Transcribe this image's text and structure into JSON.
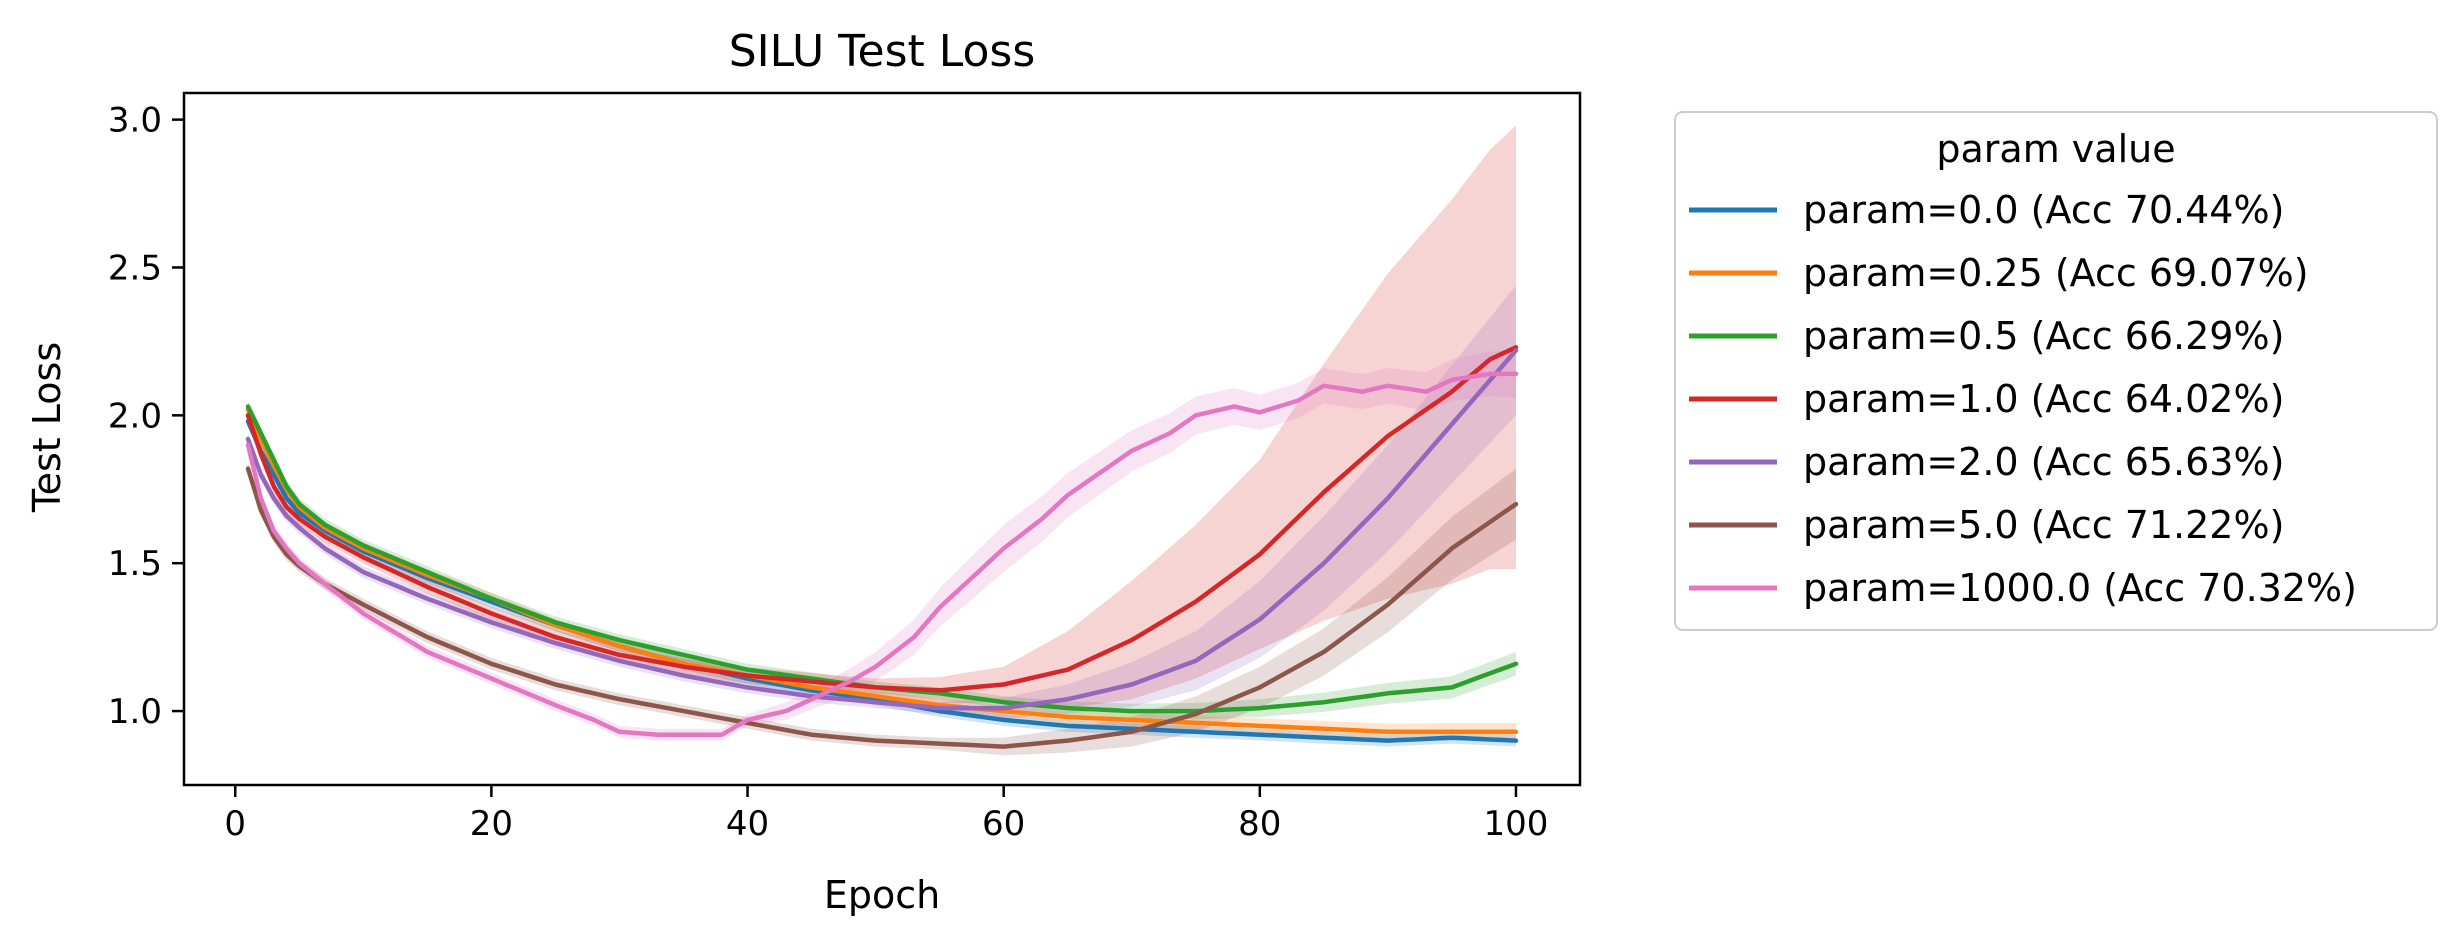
{
  "chart_data": {
    "type": "line",
    "title": "SILU Test Loss",
    "xlabel": "Epoch",
    "ylabel": "Test Loss",
    "xlim": [
      -4,
      105
    ],
    "ylim": [
      0.75,
      3.09
    ],
    "xticks": [
      0,
      20,
      40,
      60,
      80,
      100
    ],
    "yticks": [
      1.0,
      1.5,
      2.0,
      2.5,
      3.0
    ],
    "x_tick_labels": [
      "0",
      "20",
      "40",
      "60",
      "80",
      "100"
    ],
    "y_tick_labels": [
      "1.0",
      "1.5",
      "2.0",
      "2.5",
      "3.0"
    ],
    "grid": false,
    "shaded_bands": true,
    "legend": {
      "title": "param value",
      "placement": "outside-right-top"
    },
    "series": [
      {
        "name": "param=0.0 (Acc 70.44%)",
        "color": "#1f77b4",
        "points": [
          [
            1,
            1.98
          ],
          [
            2,
            1.88
          ],
          [
            3,
            1.8
          ],
          [
            4,
            1.72
          ],
          [
            5,
            1.67
          ],
          [
            7,
            1.61
          ],
          [
            10,
            1.54
          ],
          [
            15,
            1.45
          ],
          [
            20,
            1.37
          ],
          [
            25,
            1.29
          ],
          [
            30,
            1.22
          ],
          [
            35,
            1.16
          ],
          [
            40,
            1.11
          ],
          [
            45,
            1.07
          ],
          [
            50,
            1.04
          ],
          [
            55,
            1.0
          ],
          [
            60,
            0.97
          ],
          [
            65,
            0.95
          ],
          [
            70,
            0.94
          ],
          [
            75,
            0.93
          ],
          [
            80,
            0.92
          ],
          [
            85,
            0.91
          ],
          [
            90,
            0.9
          ],
          [
            95,
            0.91
          ],
          [
            100,
            0.9
          ]
        ],
        "band": [
          [
            1,
            0.02
          ],
          [
            50,
            0.02
          ],
          [
            100,
            0.02
          ]
        ]
      },
      {
        "name": "param=0.25 (Acc 69.07%)",
        "color": "#ff7f0e",
        "points": [
          [
            1,
            2.02
          ],
          [
            2,
            1.92
          ],
          [
            3,
            1.83
          ],
          [
            4,
            1.75
          ],
          [
            5,
            1.69
          ],
          [
            7,
            1.62
          ],
          [
            10,
            1.55
          ],
          [
            15,
            1.46
          ],
          [
            20,
            1.38
          ],
          [
            25,
            1.29
          ],
          [
            30,
            1.22
          ],
          [
            35,
            1.16
          ],
          [
            40,
            1.12
          ],
          [
            45,
            1.08
          ],
          [
            50,
            1.05
          ],
          [
            55,
            1.02
          ],
          [
            60,
            1.0
          ],
          [
            65,
            0.98
          ],
          [
            70,
            0.97
          ],
          [
            75,
            0.96
          ],
          [
            80,
            0.95
          ],
          [
            85,
            0.94
          ],
          [
            90,
            0.93
          ],
          [
            95,
            0.93
          ],
          [
            100,
            0.93
          ]
        ],
        "band": [
          [
            1,
            0.02
          ],
          [
            60,
            0.02
          ],
          [
            100,
            0.03
          ]
        ]
      },
      {
        "name": "param=0.5 (Acc 66.29%)",
        "color": "#2ca02c",
        "points": [
          [
            1,
            2.03
          ],
          [
            2,
            1.94
          ],
          [
            3,
            1.85
          ],
          [
            4,
            1.76
          ],
          [
            5,
            1.7
          ],
          [
            7,
            1.63
          ],
          [
            10,
            1.56
          ],
          [
            15,
            1.47
          ],
          [
            20,
            1.38
          ],
          [
            25,
            1.3
          ],
          [
            30,
            1.24
          ],
          [
            35,
            1.19
          ],
          [
            40,
            1.14
          ],
          [
            45,
            1.11
          ],
          [
            50,
            1.08
          ],
          [
            55,
            1.06
          ],
          [
            60,
            1.03
          ],
          [
            65,
            1.01
          ],
          [
            70,
            1.0
          ],
          [
            75,
            1.0
          ],
          [
            80,
            1.01
          ],
          [
            85,
            1.03
          ],
          [
            90,
            1.06
          ],
          [
            95,
            1.08
          ],
          [
            100,
            1.16
          ]
        ],
        "band": [
          [
            1,
            0.02
          ],
          [
            60,
            0.02
          ],
          [
            100,
            0.04
          ]
        ]
      },
      {
        "name": "param=1.0 (Acc 64.02%)",
        "color": "#d62728",
        "points": [
          [
            1,
            2.0
          ],
          [
            2,
            1.87
          ],
          [
            3,
            1.76
          ],
          [
            4,
            1.69
          ],
          [
            5,
            1.65
          ],
          [
            7,
            1.59
          ],
          [
            10,
            1.52
          ],
          [
            15,
            1.42
          ],
          [
            20,
            1.33
          ],
          [
            25,
            1.25
          ],
          [
            30,
            1.19
          ],
          [
            35,
            1.15
          ],
          [
            40,
            1.12
          ],
          [
            45,
            1.1
          ],
          [
            50,
            1.08
          ],
          [
            55,
            1.07
          ],
          [
            60,
            1.09
          ],
          [
            65,
            1.14
          ],
          [
            70,
            1.24
          ],
          [
            75,
            1.37
          ],
          [
            80,
            1.53
          ],
          [
            85,
            1.74
          ],
          [
            90,
            1.93
          ],
          [
            95,
            2.08
          ],
          [
            98,
            2.19
          ],
          [
            100,
            2.23
          ]
        ],
        "band": [
          [
            1,
            0.02
          ],
          [
            50,
            0.03
          ],
          [
            60,
            0.06
          ],
          [
            70,
            0.2
          ],
          [
            80,
            0.32
          ],
          [
            90,
            0.55
          ],
          [
            100,
            0.75
          ]
        ]
      },
      {
        "name": "param=2.0 (Acc 65.63%)",
        "color": "#9467bd",
        "points": [
          [
            1,
            1.92
          ],
          [
            2,
            1.8
          ],
          [
            3,
            1.72
          ],
          [
            4,
            1.66
          ],
          [
            5,
            1.62
          ],
          [
            7,
            1.55
          ],
          [
            10,
            1.47
          ],
          [
            15,
            1.38
          ],
          [
            20,
            1.3
          ],
          [
            25,
            1.23
          ],
          [
            30,
            1.17
          ],
          [
            35,
            1.12
          ],
          [
            40,
            1.08
          ],
          [
            45,
            1.05
          ],
          [
            50,
            1.03
          ],
          [
            55,
            1.01
          ],
          [
            60,
            1.01
          ],
          [
            65,
            1.04
          ],
          [
            70,
            1.09
          ],
          [
            75,
            1.17
          ],
          [
            80,
            1.31
          ],
          [
            85,
            1.5
          ],
          [
            90,
            1.72
          ],
          [
            95,
            1.97
          ],
          [
            100,
            2.22
          ]
        ],
        "band": [
          [
            1,
            0.02
          ],
          [
            55,
            0.02
          ],
          [
            65,
            0.05
          ],
          [
            75,
            0.1
          ],
          [
            85,
            0.16
          ],
          [
            100,
            0.22
          ]
        ]
      },
      {
        "name": "param=5.0 (Acc 71.22%)",
        "color": "#8c564b",
        "points": [
          [
            1,
            1.82
          ],
          [
            2,
            1.68
          ],
          [
            3,
            1.59
          ],
          [
            4,
            1.53
          ],
          [
            5,
            1.49
          ],
          [
            7,
            1.43
          ],
          [
            10,
            1.36
          ],
          [
            15,
            1.25
          ],
          [
            20,
            1.16
          ],
          [
            25,
            1.09
          ],
          [
            30,
            1.04
          ],
          [
            35,
            1.0
          ],
          [
            40,
            0.96
          ],
          [
            45,
            0.92
          ],
          [
            50,
            0.9
          ],
          [
            55,
            0.89
          ],
          [
            60,
            0.88
          ],
          [
            65,
            0.9
          ],
          [
            70,
            0.93
          ],
          [
            75,
            0.99
          ],
          [
            80,
            1.08
          ],
          [
            85,
            1.2
          ],
          [
            90,
            1.36
          ],
          [
            95,
            1.55
          ],
          [
            100,
            1.7
          ]
        ],
        "band": [
          [
            1,
            0.02
          ],
          [
            55,
            0.02
          ],
          [
            65,
            0.04
          ],
          [
            75,
            0.06
          ],
          [
            85,
            0.08
          ],
          [
            100,
            0.12
          ]
        ]
      },
      {
        "name": "param=1000.0 (Acc 70.32%)",
        "color": "#e377c2",
        "points": [
          [
            1,
            1.9
          ],
          [
            2,
            1.72
          ],
          [
            3,
            1.61
          ],
          [
            4,
            1.55
          ],
          [
            5,
            1.5
          ],
          [
            7,
            1.43
          ],
          [
            10,
            1.33
          ],
          [
            15,
            1.2
          ],
          [
            20,
            1.11
          ],
          [
            25,
            1.02
          ],
          [
            28,
            0.97
          ],
          [
            30,
            0.93
          ],
          [
            33,
            0.92
          ],
          [
            36,
            0.92
          ],
          [
            38,
            0.92
          ],
          [
            40,
            0.97
          ],
          [
            43,
            1.0
          ],
          [
            45,
            1.04
          ],
          [
            48,
            1.1
          ],
          [
            50,
            1.15
          ],
          [
            53,
            1.25
          ],
          [
            55,
            1.35
          ],
          [
            58,
            1.47
          ],
          [
            60,
            1.55
          ],
          [
            63,
            1.65
          ],
          [
            65,
            1.73
          ],
          [
            68,
            1.82
          ],
          [
            70,
            1.88
          ],
          [
            73,
            1.94
          ],
          [
            75,
            2.0
          ],
          [
            78,
            2.03
          ],
          [
            80,
            2.01
          ],
          [
            83,
            2.05
          ],
          [
            85,
            2.1
          ],
          [
            88,
            2.08
          ],
          [
            90,
            2.1
          ],
          [
            93,
            2.08
          ],
          [
            95,
            2.12
          ],
          [
            98,
            2.14
          ],
          [
            100,
            2.14
          ]
        ],
        "band": [
          [
            1,
            0.02
          ],
          [
            40,
            0.02
          ],
          [
            50,
            0.05
          ],
          [
            60,
            0.08
          ],
          [
            70,
            0.07
          ],
          [
            80,
            0.06
          ],
          [
            90,
            0.06
          ],
          [
            100,
            0.08
          ]
        ]
      }
    ]
  }
}
